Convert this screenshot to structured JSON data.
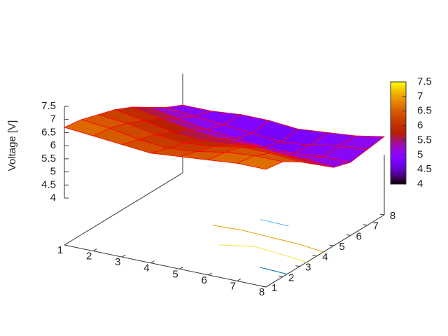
{
  "chart_data": {
    "type": "surface",
    "zlabel": "Voltage [V]",
    "x": [
      1,
      2,
      3,
      4,
      5,
      6,
      7,
      8
    ],
    "y": [
      1,
      2,
      3,
      4,
      5,
      6,
      7,
      8
    ],
    "z": [
      [
        6.7,
        6.6,
        6.5,
        6.4,
        6.5,
        6.6,
        6.7,
        6.7
      ],
      [
        6.6,
        6.5,
        6.3,
        6.2,
        6.3,
        6.5,
        6.6,
        6.6
      ],
      [
        6.4,
        6.3,
        6.1,
        6.0,
        6.1,
        6.3,
        6.3,
        6.2
      ],
      [
        6.2,
        6.0,
        5.8,
        5.7,
        5.8,
        5.9,
        5.8,
        5.7
      ],
      [
        5.9,
        5.7,
        5.5,
        5.4,
        5.4,
        5.3,
        5.3,
        5.2
      ],
      [
        5.5,
        5.3,
        5.1,
        5.0,
        4.9,
        4.9,
        5.0,
        5.0
      ],
      [
        5.1,
        5.0,
        4.9,
        4.8,
        4.7,
        4.8,
        5.0,
        5.1
      ],
      [
        4.8,
        4.8,
        4.9,
        4.9,
        4.8,
        4.9,
        5.0,
        5.2
      ]
    ],
    "xlim": [
      1,
      8
    ],
    "ylim": [
      1,
      8
    ],
    "zlim": [
      4,
      7.5
    ],
    "xticks": [
      1,
      2,
      3,
      4,
      5,
      6,
      7,
      8
    ],
    "yticks": [
      1,
      2,
      3,
      4,
      5,
      6,
      7,
      8
    ],
    "zticks": [
      4,
      4.5,
      5,
      5.5,
      6,
      6.5,
      7,
      7.5
    ],
    "cblim": [
      4,
      7.5
    ],
    "cbticks": [
      4,
      4.5,
      5,
      5.5,
      6,
      6.5,
      7,
      7.5
    ],
    "mesh_color": "#ff0000",
    "contour": true
  }
}
